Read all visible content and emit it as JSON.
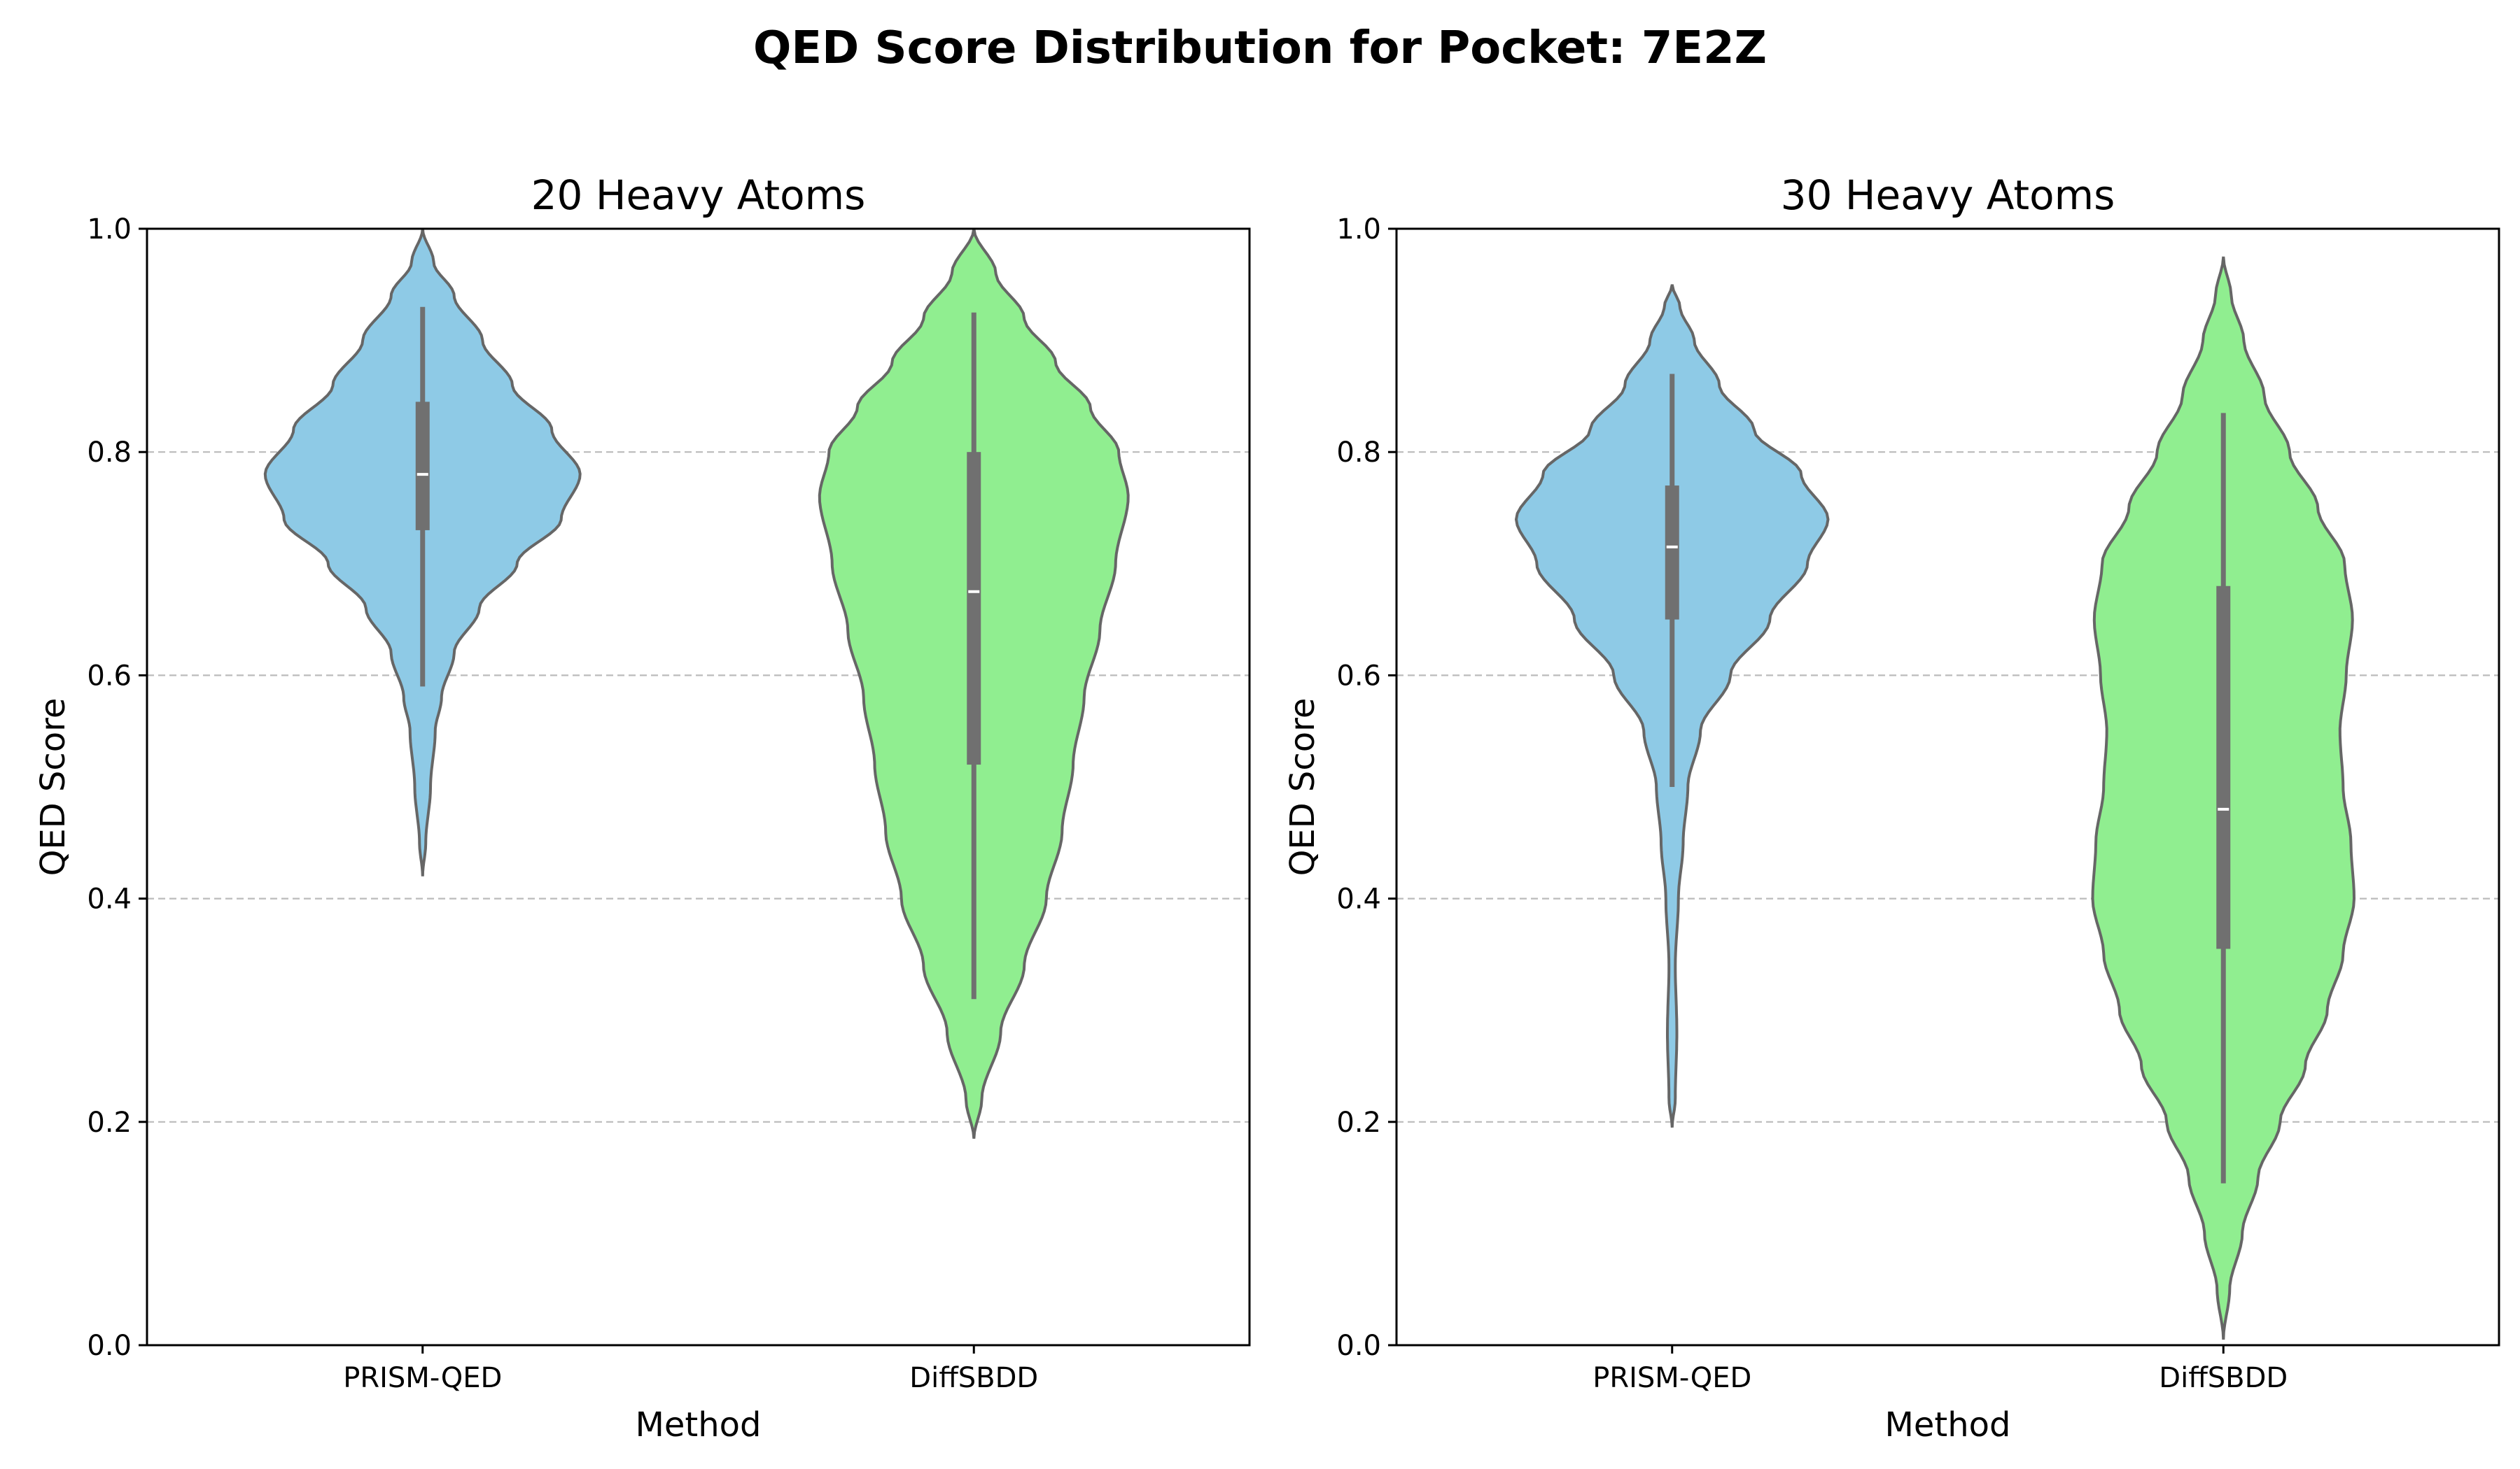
{
  "figure": {
    "title": "QED Score Distribution for Pocket: 7E2Z"
  },
  "colors": {
    "PRISM-QED": "#8ecae6",
    "DiffSBDD": "#90ee90",
    "outline": "#666666",
    "box": "#707070",
    "median": "#ffffff",
    "grid": "#bbbbbb"
  },
  "chart_data": [
    {
      "type": "violin",
      "title": "20 Heavy Atoms",
      "xlabel": "Method",
      "ylabel": "QED Score",
      "ylim": [
        0,
        1
      ],
      "yticks": [
        "0.0",
        "0.2",
        "0.4",
        "0.6",
        "0.8",
        "1.0"
      ],
      "grid": "y, dashed",
      "categories": [
        "PRISM-QED",
        "DiffSBDD"
      ],
      "series": [
        {
          "category": "PRISM-QED",
          "min": 0.59,
          "q1": 0.73,
          "median": 0.78,
          "q3": 0.845,
          "max": 0.93,
          "range": [
            0.42,
            1.0
          ],
          "density": [
            [
              0.42,
              0.0
            ],
            [
              0.45,
              0.02
            ],
            [
              0.5,
              0.05
            ],
            [
              0.55,
              0.08
            ],
            [
              0.58,
              0.12
            ],
            [
              0.62,
              0.2
            ],
            [
              0.66,
              0.36
            ],
            [
              0.7,
              0.6
            ],
            [
              0.74,
              0.88
            ],
            [
              0.78,
              1.0
            ],
            [
              0.82,
              0.82
            ],
            [
              0.86,
              0.57
            ],
            [
              0.9,
              0.38
            ],
            [
              0.94,
              0.2
            ],
            [
              0.97,
              0.07
            ],
            [
              1.0,
              0.0
            ]
          ]
        },
        {
          "category": "DiffSBDD",
          "min": 0.31,
          "q1": 0.52,
          "median": 0.675,
          "q3": 0.8,
          "max": 0.925,
          "range": [
            0.185,
            1.0
          ],
          "density": [
            [
              0.185,
              0.0
            ],
            [
              0.22,
              0.05
            ],
            [
              0.28,
              0.17
            ],
            [
              0.34,
              0.32
            ],
            [
              0.4,
              0.46
            ],
            [
              0.46,
              0.56
            ],
            [
              0.52,
              0.63
            ],
            [
              0.58,
              0.7
            ],
            [
              0.64,
              0.8
            ],
            [
              0.7,
              0.9
            ],
            [
              0.76,
              0.98
            ],
            [
              0.8,
              0.92
            ],
            [
              0.84,
              0.74
            ],
            [
              0.88,
              0.52
            ],
            [
              0.92,
              0.32
            ],
            [
              0.96,
              0.14
            ],
            [
              1.0,
              0.0
            ]
          ]
        }
      ]
    },
    {
      "type": "violin",
      "title": "30 Heavy Atoms",
      "xlabel": "Method",
      "ylabel": "QED Score",
      "ylim": [
        0,
        1
      ],
      "yticks": [
        "0.0",
        "0.2",
        "0.4",
        "0.6",
        "0.8",
        "1.0"
      ],
      "grid": "y, dashed",
      "categories": [
        "PRISM-QED",
        "DiffSBDD"
      ],
      "series": [
        {
          "category": "PRISM-QED",
          "min": 0.5,
          "q1": 0.65,
          "median": 0.715,
          "q3": 0.77,
          "max": 0.87,
          "range": [
            0.195,
            0.95
          ],
          "density": [
            [
              0.195,
              0.0
            ],
            [
              0.22,
              0.02
            ],
            [
              0.28,
              0.03
            ],
            [
              0.34,
              0.02
            ],
            [
              0.4,
              0.04
            ],
            [
              0.45,
              0.07
            ],
            [
              0.5,
              0.1
            ],
            [
              0.55,
              0.18
            ],
            [
              0.6,
              0.37
            ],
            [
              0.65,
              0.62
            ],
            [
              0.7,
              0.86
            ],
            [
              0.74,
              0.99
            ],
            [
              0.78,
              0.82
            ],
            [
              0.82,
              0.52
            ],
            [
              0.86,
              0.3
            ],
            [
              0.9,
              0.14
            ],
            [
              0.93,
              0.05
            ],
            [
              0.95,
              0.0
            ]
          ]
        },
        {
          "category": "DiffSBDD",
          "min": 0.145,
          "q1": 0.355,
          "median": 0.48,
          "q3": 0.68,
          "max": 0.835,
          "range": [
            0.005,
            0.975
          ],
          "density": [
            [
              0.005,
              0.0
            ],
            [
              0.05,
              0.04
            ],
            [
              0.1,
              0.12
            ],
            [
              0.15,
              0.22
            ],
            [
              0.2,
              0.36
            ],
            [
              0.25,
              0.52
            ],
            [
              0.3,
              0.66
            ],
            [
              0.35,
              0.76
            ],
            [
              0.4,
              0.83
            ],
            [
              0.45,
              0.81
            ],
            [
              0.5,
              0.76
            ],
            [
              0.55,
              0.74
            ],
            [
              0.6,
              0.78
            ],
            [
              0.65,
              0.82
            ],
            [
              0.7,
              0.77
            ],
            [
              0.75,
              0.6
            ],
            [
              0.8,
              0.42
            ],
            [
              0.85,
              0.26
            ],
            [
              0.9,
              0.13
            ],
            [
              0.94,
              0.05
            ],
            [
              0.975,
              0.0
            ]
          ]
        }
      ]
    }
  ]
}
